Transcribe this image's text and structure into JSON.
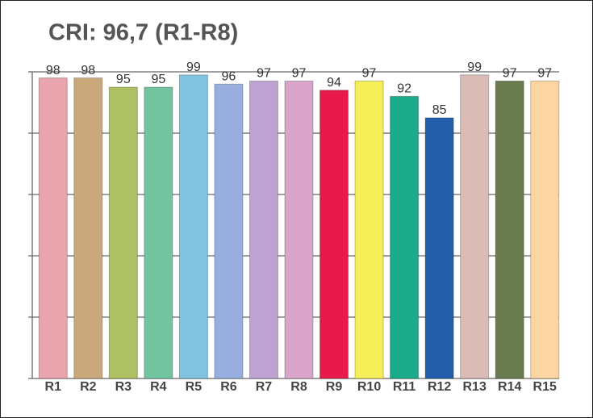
{
  "chart_data": {
    "type": "bar",
    "title": "CRI: 96,7 (R1-R8)",
    "categories": [
      "R1",
      "R2",
      "R3",
      "R4",
      "R5",
      "R6",
      "R7",
      "R8",
      "R9",
      "R10",
      "R11",
      "R12",
      "R13",
      "R14",
      "R15"
    ],
    "values": [
      98,
      98,
      95,
      95,
      99,
      96,
      97,
      97,
      94,
      97,
      92,
      85,
      99,
      97,
      97
    ],
    "colors": [
      "#e8a5ae",
      "#c9a97c",
      "#adc062",
      "#72c39f",
      "#80c2e0",
      "#98aedf",
      "#bda2d2",
      "#daa5ca",
      "#e8194b",
      "#f6ee57",
      "#1aab8a",
      "#225ea9",
      "#d9bcb6",
      "#6a7b4f",
      "#fdd5a2"
    ],
    "ylim": [
      0,
      100
    ],
    "yticks": [
      0,
      20,
      40,
      60,
      80,
      100
    ],
    "grid": true
  }
}
